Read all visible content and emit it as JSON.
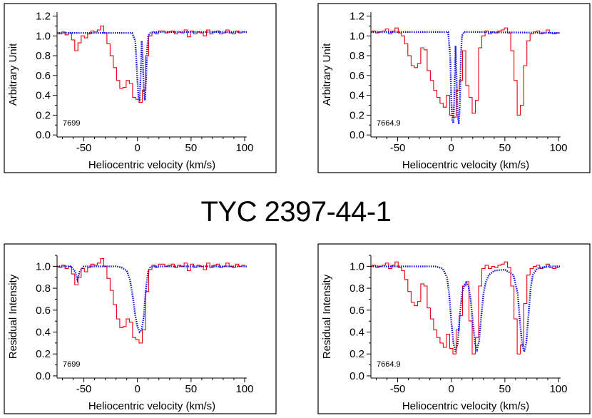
{
  "title": "TYC 2397-44-1",
  "colors": {
    "observed": "#e8000b",
    "model": "#1010e0",
    "frame": "#000000"
  },
  "chart_data": [
    {
      "type": "line",
      "xlabel": "Heliocentric velocity (km/s)",
      "ylabel": "Arbitrary Unit",
      "label": "7699",
      "xlim": [
        -75,
        102
      ],
      "ylim": [
        -0.02,
        1.24
      ],
      "xticks": [
        -50,
        0,
        50,
        100
      ],
      "yticks": [
        0.0,
        0.2,
        0.4,
        0.6,
        0.8,
        1.0,
        1.2
      ],
      "series": [
        {
          "style": "step",
          "color": "observed",
          "x": [
            -75,
            -72,
            -69,
            -66,
            -63,
            -60,
            -57,
            -54,
            -51,
            -48,
            -45,
            -42,
            -39,
            -36,
            -33,
            -30,
            -27,
            -24,
            -21,
            -18,
            -15,
            -12,
            -9,
            -6,
            -3,
            0,
            3,
            6,
            9,
            12,
            15,
            18,
            21,
            24,
            27,
            30,
            33,
            36,
            39,
            42,
            45,
            48,
            51,
            54,
            57,
            60,
            63,
            66,
            69,
            72,
            75,
            78,
            81,
            84,
            87,
            90,
            93,
            96,
            99
          ],
          "y": [
            1.03,
            1.02,
            1.04,
            1.01,
            1.03,
            0.96,
            0.85,
            0.93,
            1.0,
            0.98,
            1.02,
            1.05,
            1.04,
            1.06,
            1.1,
            1.03,
            0.92,
            0.8,
            0.68,
            0.55,
            0.47,
            0.48,
            0.55,
            0.52,
            0.38,
            0.36,
            0.33,
            0.45,
            0.8,
            1.0,
            1.04,
            1.02,
            1.05,
            1.05,
            1.03,
            1.04,
            1.05,
            1.02,
            1.04,
            1.03,
            1.06,
            0.99,
            1.05,
            1.02,
            1.04,
            1.03,
            1.0,
            1.06,
            1.02,
            1.04,
            1.05,
            1.02,
            1.03,
            1.06,
            1.03,
            1.02,
            1.05,
            1.03,
            1.04
          ]
        },
        {
          "style": "dotted",
          "color": "model",
          "x": [
            -75,
            -20,
            -5,
            -2,
            0,
            1,
            2,
            3,
            4,
            5,
            6,
            7,
            8,
            9,
            10,
            12,
            20,
            102
          ],
          "y": [
            1.03,
            1.03,
            1.03,
            0.95,
            0.55,
            0.38,
            0.34,
            0.6,
            0.95,
            0.75,
            0.45,
            0.35,
            0.55,
            0.85,
            1.0,
            1.03,
            1.04,
            1.04
          ]
        }
      ]
    },
    {
      "type": "line",
      "xlabel": "Heliocentric velocity (km/s)",
      "ylabel": "Arbitrary Unit",
      "label": "7664.9",
      "xlim": [
        -75,
        102
      ],
      "ylim": [
        -0.02,
        1.24
      ],
      "xticks": [
        -50,
        0,
        50,
        100
      ],
      "yticks": [
        0.0,
        0.2,
        0.4,
        0.6,
        0.8,
        1.0,
        1.2
      ],
      "series": [
        {
          "style": "step",
          "color": "observed",
          "x": [
            -75,
            -72,
            -69,
            -66,
            -63,
            -60,
            -57,
            -54,
            -51,
            -48,
            -45,
            -42,
            -39,
            -36,
            -33,
            -30,
            -27,
            -24,
            -21,
            -18,
            -15,
            -12,
            -9,
            -6,
            -3,
            0,
            3,
            6,
            9,
            12,
            15,
            18,
            21,
            24,
            27,
            30,
            33,
            36,
            39,
            42,
            45,
            48,
            51,
            54,
            57,
            60,
            63,
            66,
            69,
            72,
            75,
            78,
            81,
            84,
            87,
            90,
            93,
            96,
            99
          ],
          "y": [
            1.04,
            1.05,
            1.03,
            1.04,
            1.05,
            1.07,
            1.02,
            1.05,
            1.08,
            1.03,
            1.0,
            0.92,
            0.8,
            0.7,
            0.68,
            0.72,
            0.88,
            0.86,
            0.65,
            0.55,
            0.45,
            0.38,
            0.32,
            0.28,
            0.4,
            0.2,
            0.18,
            0.45,
            0.55,
            0.85,
            0.5,
            0.38,
            0.22,
            0.35,
            0.88,
            1.0,
            1.05,
            1.02,
            1.04,
            1.03,
            1.05,
            1.06,
            1.08,
            1.03,
            0.85,
            0.55,
            0.2,
            0.3,
            0.7,
            0.95,
            1.02,
            1.04,
            1.05,
            1.02,
            1.03,
            1.06,
            1.03,
            1.02,
            1.03
          ]
        },
        {
          "style": "dotted",
          "color": "model",
          "x": [
            -75,
            -20,
            -3,
            -1,
            0,
            1,
            2,
            3,
            4,
            5,
            6,
            7,
            8,
            9,
            10,
            12,
            20,
            102
          ],
          "y": [
            1.04,
            1.04,
            1.04,
            0.8,
            0.35,
            0.15,
            0.12,
            0.45,
            0.9,
            0.55,
            0.2,
            0.11,
            0.3,
            0.8,
            1.0,
            1.04,
            1.04,
            1.03
          ]
        }
      ]
    },
    {
      "type": "line",
      "xlabel": "Heliocentric velocity (km/s)",
      "ylabel": "Residual Intensity",
      "label": "7699",
      "xlim": [
        -75,
        102
      ],
      "ylim": [
        -0.02,
        1.1
      ],
      "xticks": [
        -50,
        0,
        50,
        100
      ],
      "yticks": [
        0.0,
        0.2,
        0.4,
        0.6,
        0.8,
        1.0
      ],
      "series": [
        {
          "style": "step",
          "color": "observed",
          "x": [
            -75,
            -72,
            -69,
            -66,
            -63,
            -60,
            -57,
            -54,
            -51,
            -48,
            -45,
            -42,
            -39,
            -36,
            -33,
            -30,
            -27,
            -24,
            -21,
            -18,
            -15,
            -12,
            -9,
            -6,
            -3,
            0,
            3,
            6,
            9,
            12,
            15,
            18,
            21,
            24,
            27,
            30,
            33,
            36,
            39,
            42,
            45,
            48,
            51,
            54,
            57,
            60,
            63,
            66,
            69,
            72,
            75,
            78,
            81,
            84,
            87,
            90,
            93,
            96,
            99
          ],
          "y": [
            1.0,
            0.99,
            1.01,
            0.98,
            1.0,
            0.93,
            0.83,
            0.9,
            0.98,
            0.95,
            0.99,
            1.02,
            1.01,
            1.03,
            1.07,
            1.0,
            0.89,
            0.78,
            0.65,
            0.52,
            0.44,
            0.45,
            0.52,
            0.49,
            0.35,
            0.33,
            0.3,
            0.42,
            0.77,
            0.97,
            1.01,
            0.99,
            1.02,
            1.02,
            1.0,
            1.01,
            1.02,
            0.99,
            1.01,
            1.0,
            1.03,
            0.96,
            1.02,
            0.99,
            1.01,
            1.0,
            0.97,
            1.03,
            0.99,
            1.01,
            1.02,
            0.99,
            1.0,
            1.03,
            1.0,
            0.99,
            1.02,
            1.0,
            1.01
          ]
        },
        {
          "style": "dotted",
          "color": "model",
          "x": [
            -75,
            -62,
            -58,
            -56,
            -54,
            -50,
            -45,
            -30,
            -20,
            -15,
            -10,
            -7,
            -4,
            -2,
            0,
            2,
            4,
            6,
            8,
            10,
            12,
            15,
            20,
            102
          ],
          "y": [
            1.0,
            1.0,
            0.95,
            0.88,
            0.95,
            1.0,
            1.0,
            1.0,
            1.0,
            0.99,
            0.96,
            0.88,
            0.7,
            0.55,
            0.45,
            0.4,
            0.42,
            0.55,
            0.8,
            0.95,
            0.99,
            1.0,
            1.0,
            1.0
          ]
        }
      ]
    },
    {
      "type": "line",
      "xlabel": "Heliocentric velocity (km/s)",
      "ylabel": "Residual Intensity",
      "label": "7664.9",
      "xlim": [
        -75,
        102
      ],
      "ylim": [
        -0.02,
        1.1
      ],
      "xticks": [
        -50,
        0,
        50,
        100
      ],
      "yticks": [
        0.0,
        0.2,
        0.4,
        0.6,
        0.8,
        1.0
      ],
      "series": [
        {
          "style": "step",
          "color": "observed",
          "x": [
            -75,
            -72,
            -69,
            -66,
            -63,
            -60,
            -57,
            -54,
            -51,
            -48,
            -45,
            -42,
            -39,
            -36,
            -33,
            -30,
            -27,
            -24,
            -21,
            -18,
            -15,
            -12,
            -9,
            -6,
            -3,
            0,
            3,
            6,
            9,
            12,
            15,
            18,
            21,
            24,
            27,
            30,
            33,
            36,
            39,
            42,
            45,
            48,
            51,
            54,
            57,
            60,
            63,
            66,
            69,
            72,
            75,
            78,
            81,
            84,
            87,
            90,
            93,
            96,
            99
          ],
          "y": [
            1.0,
            1.01,
            0.99,
            1.0,
            1.01,
            1.03,
            0.98,
            1.01,
            1.04,
            0.99,
            0.96,
            0.88,
            0.77,
            0.67,
            0.64,
            0.68,
            0.84,
            0.82,
            0.62,
            0.52,
            0.42,
            0.35,
            0.3,
            0.26,
            0.38,
            0.25,
            0.2,
            0.42,
            0.55,
            0.82,
            0.86,
            0.5,
            0.2,
            0.35,
            0.82,
            0.98,
            1.01,
            0.98,
            1.0,
            0.99,
            1.01,
            1.02,
            1.04,
            0.99,
            0.82,
            0.52,
            0.2,
            0.28,
            0.66,
            0.92,
            0.98,
            1.0,
            1.01,
            0.98,
            0.99,
            1.02,
            0.99,
            0.98,
            0.99
          ]
        },
        {
          "style": "dotted",
          "color": "model",
          "x": [
            -75,
            -15,
            -8,
            -4,
            -2,
            0,
            2,
            4,
            6,
            8,
            10,
            12,
            14,
            16,
            18,
            20,
            22,
            24,
            26,
            28,
            30,
            32,
            35,
            40,
            50,
            58,
            62,
            64,
            66,
            68,
            70,
            72,
            74,
            76,
            80,
            90,
            102
          ],
          "y": [
            1.0,
            1.0,
            0.98,
            0.9,
            0.75,
            0.5,
            0.3,
            0.22,
            0.3,
            0.55,
            0.75,
            0.83,
            0.85,
            0.82,
            0.7,
            0.5,
            0.3,
            0.24,
            0.32,
            0.55,
            0.75,
            0.85,
            0.92,
            0.96,
            0.97,
            0.92,
            0.75,
            0.5,
            0.3,
            0.22,
            0.3,
            0.55,
            0.8,
            0.92,
            0.98,
            1.0,
            1.0
          ]
        }
      ]
    }
  ]
}
